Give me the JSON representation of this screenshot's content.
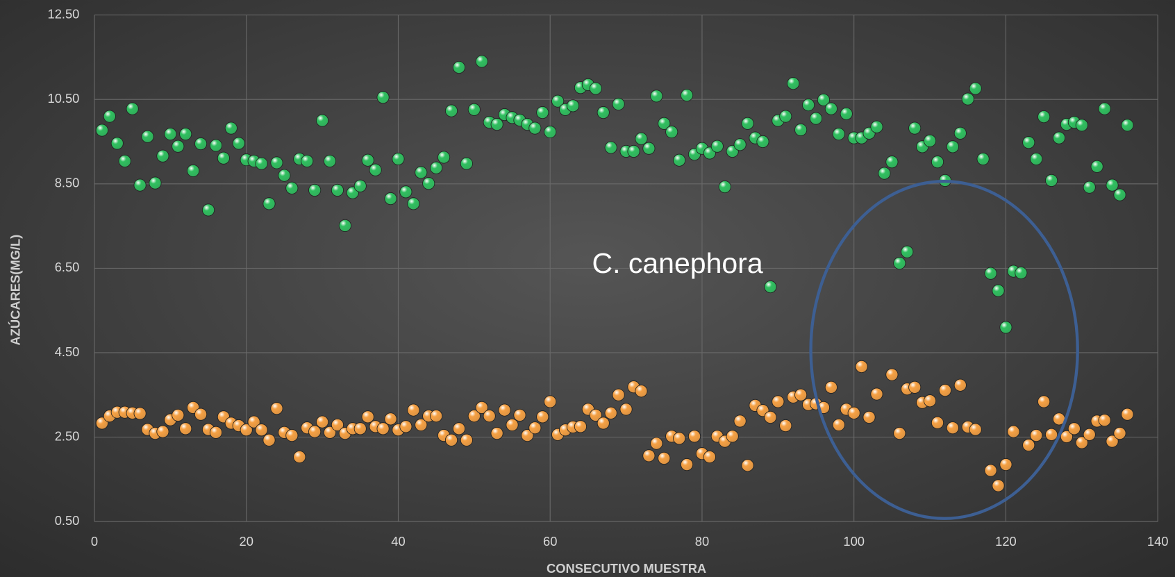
{
  "chart_data": {
    "type": "scatter",
    "xlabel": "CONSECUTIVO MUESTRA",
    "ylabel": "AZÚCARES(MG/L)",
    "annotation": "C. canephora",
    "xlim": [
      0,
      140
    ],
    "xticks": [
      0,
      20,
      40,
      60,
      80,
      100,
      120,
      140
    ],
    "ylim": [
      0.5,
      12.5
    ],
    "yticks": [
      {
        "value": 0.5,
        "label": "0.50"
      },
      {
        "value": 2.5,
        "label": "2.50"
      },
      {
        "value": 4.5,
        "label": "4.50"
      },
      {
        "value": 6.5,
        "label": "6.50"
      },
      {
        "value": 8.5,
        "label": "8.50"
      },
      {
        "value": 10.5,
        "label": "10.50"
      },
      {
        "value": 12.5,
        "label": "12.50"
      }
    ],
    "grid": true,
    "x": [
      1,
      2,
      3,
      4,
      5,
      6,
      7,
      8,
      9,
      10,
      11,
      12,
      13,
      14,
      15,
      16,
      17,
      18,
      19,
      20,
      21,
      22,
      23,
      24,
      25,
      26,
      27,
      28,
      29,
      30,
      31,
      32,
      33,
      34,
      35,
      36,
      37,
      38,
      39,
      40,
      41,
      42,
      43,
      44,
      45,
      46,
      47,
      48,
      49,
      50,
      51,
      52,
      53,
      54,
      55,
      56,
      57,
      58,
      59,
      60,
      61,
      62,
      63,
      64,
      65,
      66,
      67,
      68,
      69,
      70,
      71,
      72,
      73,
      74,
      75,
      76,
      77,
      78,
      79,
      80,
      81,
      82,
      83,
      84,
      85,
      86,
      87,
      88,
      89,
      90,
      91,
      92,
      93,
      94,
      95,
      96,
      97,
      98,
      99,
      100,
      101,
      102,
      103,
      104,
      105,
      106,
      107,
      108,
      109,
      110,
      111,
      112,
      113,
      114,
      115,
      116,
      117,
      118,
      119,
      120,
      121,
      122,
      123,
      124,
      125,
      126,
      127,
      128,
      129,
      130,
      131,
      132,
      133,
      134,
      135,
      136
    ],
    "series": [
      {
        "color": "#2fbf5f",
        "values": [
          9.77,
          10.1,
          9.46,
          9.04,
          10.28,
          8.47,
          9.62,
          8.52,
          9.16,
          9.68,
          9.39,
          9.68,
          8.81,
          9.45,
          7.88,
          9.41,
          9.11,
          9.82,
          9.46,
          9.07,
          9.04,
          8.98,
          8.03,
          9.0,
          8.7,
          8.4,
          9.09,
          9.04,
          8.35,
          10.0,
          9.04,
          8.35,
          7.51,
          8.29,
          8.45,
          9.06,
          8.83,
          10.55,
          8.15,
          9.09,
          8.31,
          8.03,
          8.77,
          8.51,
          8.88,
          9.13,
          10.23,
          11.26,
          8.98,
          10.26,
          11.4,
          9.96,
          9.91,
          10.14,
          10.07,
          10.01,
          9.91,
          9.82,
          10.19,
          9.73,
          10.46,
          10.26,
          10.35,
          10.78,
          10.85,
          10.76,
          10.19,
          9.36,
          10.39,
          9.27,
          9.27,
          9.57,
          9.34,
          10.58,
          9.93,
          9.73,
          9.06,
          10.6,
          9.2,
          9.34,
          9.23,
          9.39,
          8.43,
          9.27,
          9.43,
          9.93,
          9.59,
          9.5,
          6.06,
          10.0,
          10.1,
          10.88,
          9.78,
          10.37,
          10.05,
          10.49,
          10.28,
          9.68,
          10.16,
          9.59,
          9.59,
          9.7,
          9.85,
          8.75,
          9.02,
          6.62,
          6.89,
          9.82,
          9.38,
          9.52,
          9.02,
          8.58,
          9.38,
          9.7,
          10.51,
          10.76,
          9.09,
          6.38,
          5.97,
          5.1,
          6.43,
          6.39,
          9.48,
          9.09,
          10.09,
          8.58,
          9.59,
          9.91,
          9.96,
          9.89,
          8.42,
          8.91,
          10.28,
          8.47,
          8.24,
          9.89
        ]
      },
      {
        "color": "#f5a043",
        "values": [
          2.83,
          3.0,
          3.09,
          3.09,
          3.07,
          3.06,
          2.68,
          2.59,
          2.63,
          2.91,
          3.02,
          2.7,
          3.2,
          3.04,
          2.68,
          2.61,
          2.98,
          2.83,
          2.77,
          2.67,
          2.86,
          2.67,
          2.43,
          3.18,
          2.61,
          2.54,
          2.03,
          2.72,
          2.63,
          2.86,
          2.61,
          2.79,
          2.59,
          2.7,
          2.7,
          2.98,
          2.75,
          2.7,
          2.93,
          2.67,
          2.75,
          3.14,
          2.79,
          3.0,
          3.0,
          2.54,
          2.43,
          2.7,
          2.43,
          3.0,
          3.2,
          3.0,
          2.59,
          3.14,
          2.79,
          3.02,
          2.54,
          2.72,
          2.98,
          3.34,
          2.56,
          2.67,
          2.74,
          2.75,
          3.16,
          3.02,
          2.83,
          3.07,
          3.5,
          3.16,
          3.69,
          3.59,
          2.06,
          2.35,
          2.0,
          2.52,
          2.47,
          1.85,
          2.52,
          2.11,
          2.03,
          2.52,
          2.4,
          2.52,
          2.88,
          1.83,
          3.25,
          3.13,
          2.97,
          3.34,
          2.77,
          3.45,
          3.5,
          3.27,
          3.29,
          3.2,
          3.68,
          2.79,
          3.16,
          3.07,
          4.17,
          2.97,
          3.52,
          null,
          3.98,
          2.59,
          3.64,
          3.68,
          3.32,
          3.36,
          2.84,
          3.61,
          2.72,
          3.73,
          2.74,
          2.68,
          null,
          1.71,
          1.35,
          1.85,
          2.63,
          null,
          2.31,
          2.54,
          3.34,
          2.56,
          2.93,
          2.51,
          2.7,
          2.37,
          2.56,
          2.88,
          2.9,
          2.4,
          2.59,
          3.04
        ]
      }
    ]
  }
}
